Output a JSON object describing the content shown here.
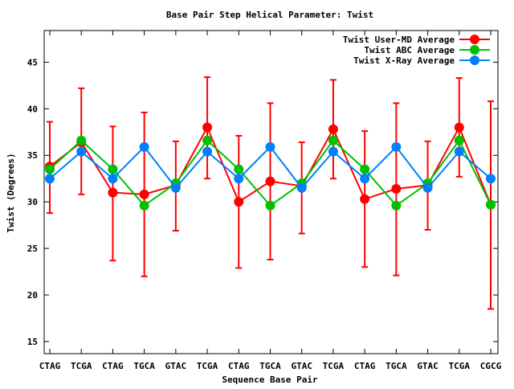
{
  "chart_data": {
    "type": "line",
    "title": "Base Pair Step Helical Parameter: Twist",
    "xlabel": "Sequence Base Pair",
    "ylabel": "Twist (Degrees)",
    "ylim": [
      13.7,
      48.4
    ],
    "yticks": [
      15,
      20,
      25,
      30,
      35,
      40,
      45
    ],
    "categories": [
      "CTAG",
      "TCGA",
      "CTAG",
      "TGCA",
      "GTAC",
      "TCGA",
      "CTAG",
      "TGCA",
      "GTAC",
      "TCGA",
      "CTAG",
      "TGCA",
      "GTAC",
      "TCGA",
      "CGCG"
    ],
    "grid": false,
    "legend_position": "top-right",
    "series": [
      {
        "name": "Twist User-MD Average",
        "color": "#ff0000",
        "values": [
          33.8,
          36.4,
          31.0,
          30.8,
          31.8,
          38.0,
          30.0,
          32.2,
          31.7,
          37.8,
          30.3,
          31.4,
          31.8,
          38.0,
          29.7
        ],
        "err_low": [
          28.8,
          30.8,
          23.7,
          22.0,
          26.9,
          32.5,
          22.9,
          23.8,
          26.6,
          32.5,
          23.0,
          22.1,
          27.0,
          32.7,
          18.5
        ],
        "err_high": [
          38.6,
          42.2,
          38.1,
          39.6,
          36.5,
          43.4,
          37.1,
          40.6,
          36.4,
          43.1,
          37.6,
          40.6,
          36.5,
          43.3,
          40.8
        ]
      },
      {
        "name": "Twist ABC Average",
        "color": "#00c000",
        "values": [
          33.5,
          36.6,
          33.5,
          29.6,
          32.0,
          36.6,
          33.5,
          29.6,
          32.0,
          36.6,
          33.5,
          29.6,
          32.0,
          36.6,
          29.7
        ]
      },
      {
        "name": "Twist X-Ray Average",
        "color": "#0080ff",
        "values": [
          32.5,
          35.4,
          32.5,
          35.9,
          31.5,
          35.4,
          32.5,
          35.9,
          31.5,
          35.4,
          32.5,
          35.9,
          31.5,
          35.4,
          32.5
        ]
      }
    ]
  }
}
